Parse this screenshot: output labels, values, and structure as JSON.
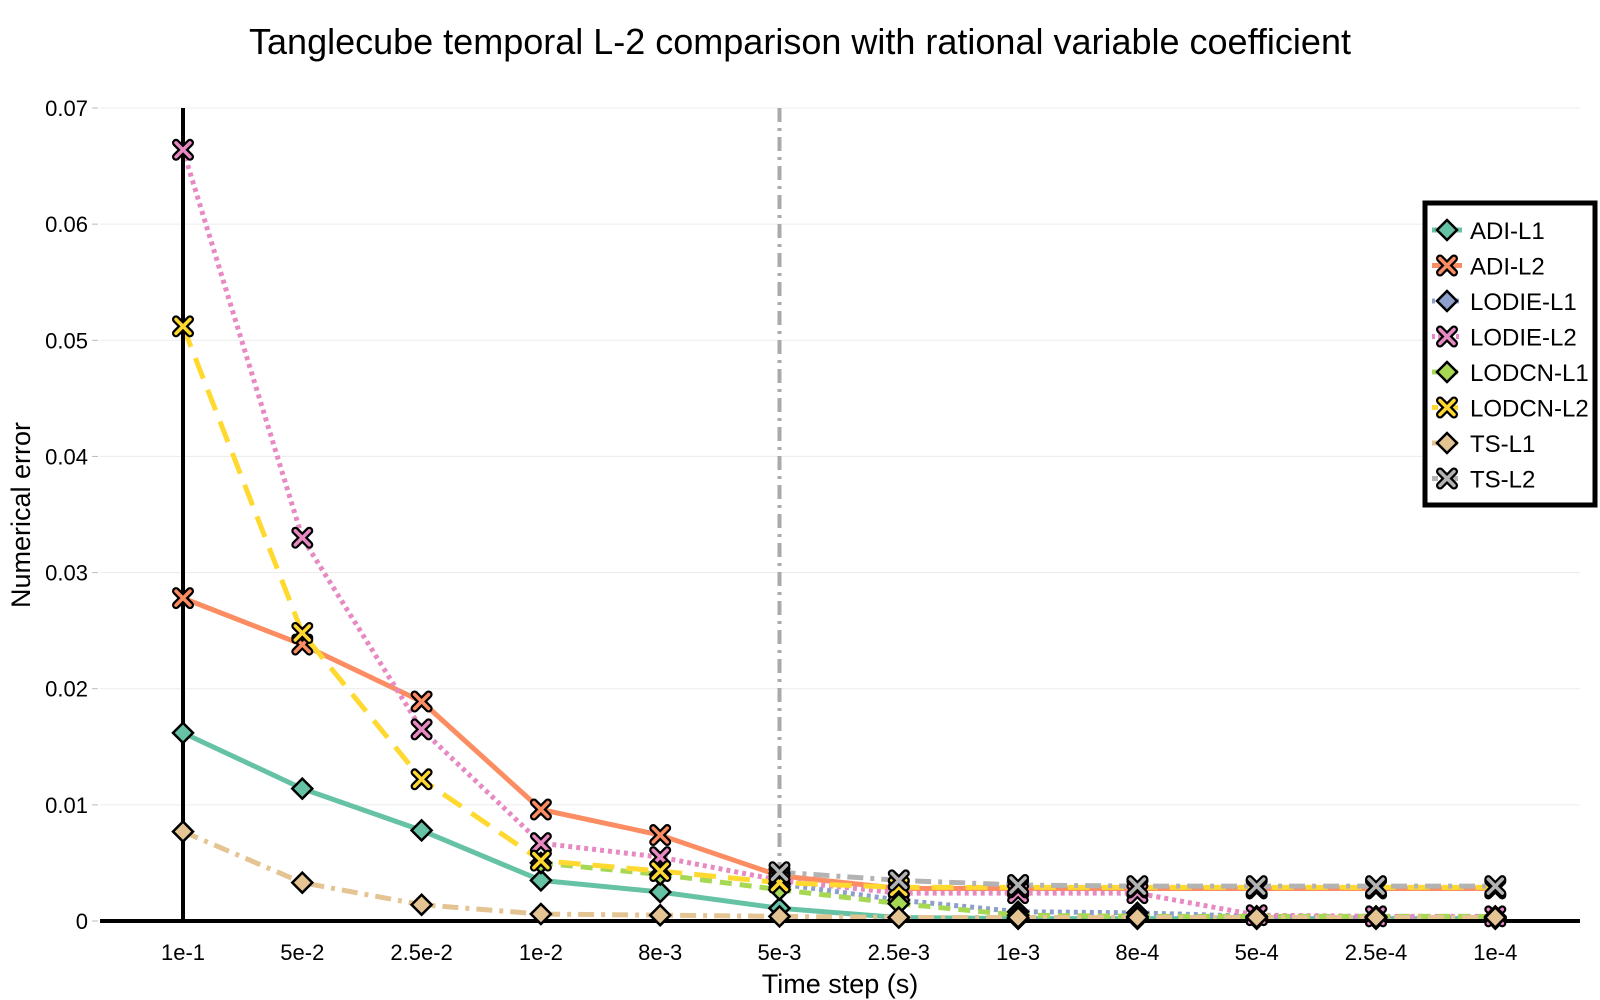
{
  "chart_data": {
    "type": "line",
    "title": "Tanglecube temporal L-2 comparison with rational variable coefficient",
    "xlabel": "Time step (s)",
    "ylabel": "Numerical error",
    "categories": [
      "1e-1",
      "5e-2",
      "2.5e-2",
      "1e-2",
      "8e-3",
      "5e-3",
      "2.5e-3",
      "1e-3",
      "8e-4",
      "5e-4",
      "2.5e-4",
      "1e-4"
    ],
    "ylim": [
      0,
      0.07
    ],
    "yticks": [
      0,
      0.01,
      0.02,
      0.03,
      0.04,
      0.05,
      0.06,
      0.07
    ],
    "ytick_labels": [
      "0",
      "0.01",
      "0.02",
      "0.03",
      "0.04",
      "0.05",
      "0.06",
      "0.07"
    ],
    "grid": true,
    "legend_position": "top-right",
    "reference_line_x": "5e-3",
    "series": [
      {
        "name": "ADI-L1",
        "color": "#66c2a5",
        "dash": "solid",
        "marker": "diamond",
        "values": [
          0.0162,
          0.0114,
          0.0078,
          0.0035,
          0.0025,
          0.0011,
          0.0003,
          0.0002,
          0.0002,
          0.0002,
          0.0002,
          0.0002
        ]
      },
      {
        "name": "ADI-L2",
        "color": "#fc8d62",
        "dash": "solid",
        "marker": "x",
        "values": [
          0.0278,
          0.0238,
          0.0189,
          0.0096,
          0.0074,
          0.0039,
          0.0028,
          0.0028,
          0.0028,
          0.0028,
          0.0028,
          0.0028
        ]
      },
      {
        "name": "LODIE-L1",
        "color": "#8da0cb",
        "dash": "dot",
        "marker": "diamond",
        "values": [
          null,
          null,
          null,
          null,
          null,
          0.0032,
          0.0018,
          0.0008,
          0.0007,
          0.0004,
          0.0003,
          0.0003
        ]
      },
      {
        "name": "LODIE-L2",
        "color": "#e78ac3",
        "dash": "dot",
        "marker": "x",
        "values": [
          0.0664,
          0.033,
          0.0165,
          0.0067,
          0.0055,
          0.0035,
          0.0024,
          0.0024,
          0.0024,
          0.0005,
          0.0004,
          0.0004
        ]
      },
      {
        "name": "LODCN-L1",
        "color": "#a6d854",
        "dash": "dash",
        "marker": "diamond",
        "values": [
          null,
          null,
          null,
          0.005,
          0.004,
          0.0027,
          0.0015,
          0.0005,
          0.0004,
          0.0004,
          0.0004,
          0.0004
        ]
      },
      {
        "name": "LODCN-L2",
        "color": "#ffd92f",
        "dash": "longdash",
        "marker": "x",
        "values": [
          0.0512,
          0.0248,
          0.0122,
          0.0052,
          0.0043,
          0.0033,
          0.0029,
          0.0029,
          0.0029,
          0.0029,
          0.0029,
          0.0029
        ]
      },
      {
        "name": "TS-L1",
        "color": "#e5c494",
        "dash": "dashdot",
        "marker": "diamond",
        "values": [
          0.0077,
          0.0033,
          0.0014,
          0.0006,
          0.0005,
          0.0004,
          0.0003,
          0.0003,
          0.0003,
          0.0003,
          0.0003,
          0.0003
        ]
      },
      {
        "name": "TS-L2",
        "color": "#b3b3b3",
        "dash": "dashdot",
        "marker": "x",
        "values": [
          null,
          null,
          null,
          null,
          null,
          0.0042,
          0.0035,
          0.0031,
          0.003,
          0.003,
          0.003,
          0.003
        ]
      }
    ]
  }
}
